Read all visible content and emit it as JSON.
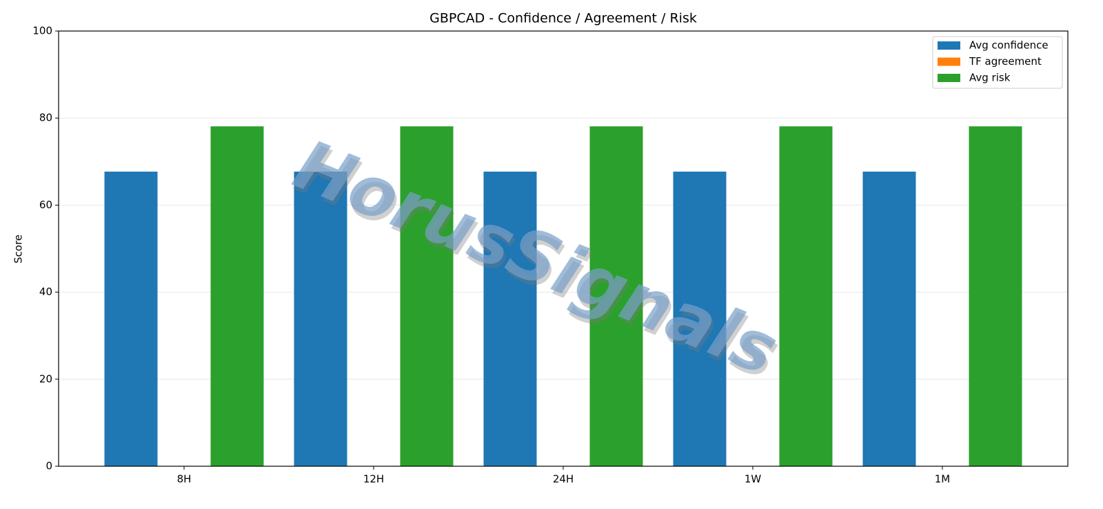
{
  "chart_data": {
    "type": "bar",
    "title": "GBPCAD - Confidence / Agreement / Risk",
    "y_label": "Score",
    "watermark": "HorusSignals",
    "categories": [
      "8H",
      "12H",
      "24H",
      "1W",
      "1M"
    ],
    "series": [
      {
        "name": "Avg confidence",
        "color": "#1f77b4",
        "values": [
          67.7,
          67.7,
          67.7,
          67.7,
          67.7
        ]
      },
      {
        "name": "TF agreement",
        "color": "#ff7f0e",
        "values": [
          0,
          0,
          0,
          0,
          0
        ]
      },
      {
        "name": "Avg risk",
        "color": "#2ca02c",
        "values": [
          78.1,
          78.1,
          78.1,
          78.1,
          78.1
        ]
      }
    ],
    "ylim": [
      0,
      100
    ],
    "yticks": [
      0,
      20,
      40,
      60,
      80,
      100
    ],
    "grid": true,
    "legend": "upper-right"
  }
}
